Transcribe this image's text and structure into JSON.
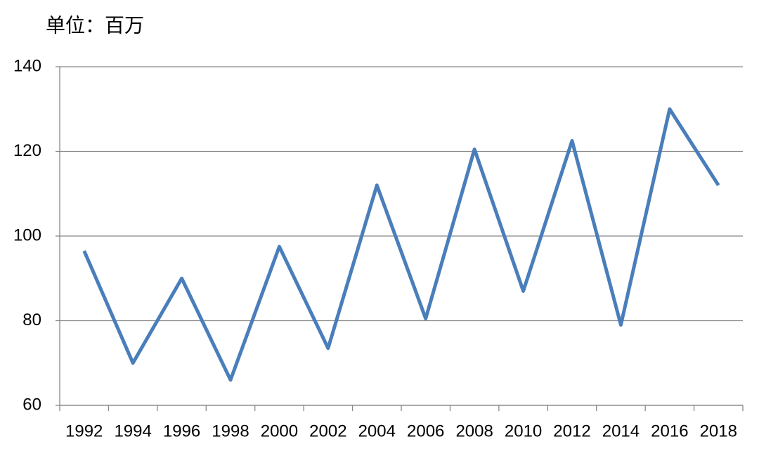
{
  "chart_data": {
    "type": "line",
    "title": "单位：百万",
    "categories": [
      "1992",
      "1994",
      "1996",
      "1998",
      "2000",
      "2002",
      "2004",
      "2006",
      "2008",
      "2010",
      "2012",
      "2014",
      "2016",
      "2018"
    ],
    "values": [
      96.5,
      70,
      90,
      66,
      97.5,
      73.5,
      112,
      80.5,
      120.5,
      87,
      122.5,
      79,
      130,
      112
    ],
    "color": "#4a7ebb",
    "ylim": [
      60,
      140
    ],
    "yticks": [
      60,
      80,
      100,
      120,
      140
    ],
    "grid": true
  }
}
